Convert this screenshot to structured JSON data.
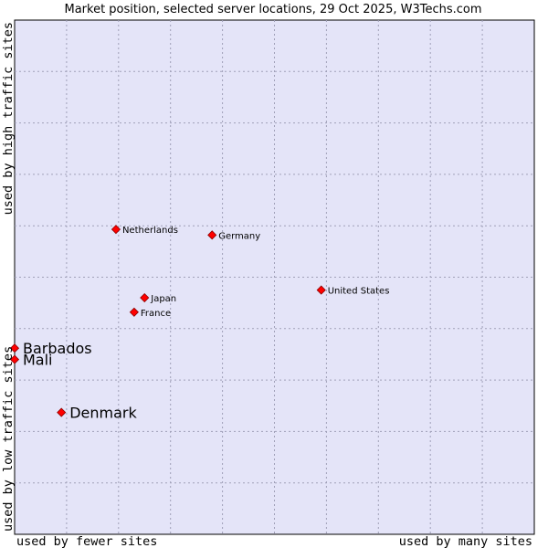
{
  "chart_data": {
    "type": "scatter",
    "title": "Market position, selected server locations, 29 Oct 2025, W3Techs.com",
    "xlabel_left": "used by fewer sites",
    "xlabel_right": "used by many sites",
    "ylabel_low": "used by low traffic sites",
    "ylabel_high": "used by high traffic sites",
    "xlim": [
      0,
      10
    ],
    "ylim": [
      0,
      10
    ],
    "grid": true,
    "point_color": "#ff0000",
    "plot_background": "#e4e4f8",
    "points": [
      {
        "name": "Netherlands",
        "x": 1.95,
        "y": 5.93,
        "size": "small"
      },
      {
        "name": "Germany",
        "x": 3.8,
        "y": 5.82,
        "size": "small"
      },
      {
        "name": "United States",
        "x": 5.9,
        "y": 4.75,
        "size": "small"
      },
      {
        "name": "Japan",
        "x": 2.5,
        "y": 4.6,
        "size": "small"
      },
      {
        "name": "France",
        "x": 2.3,
        "y": 4.32,
        "size": "small"
      },
      {
        "name": "Barbados",
        "x": 0.0,
        "y": 3.62,
        "size": "large"
      },
      {
        "name": "Mali",
        "x": 0.0,
        "y": 3.4,
        "size": "large"
      },
      {
        "name": "Denmark",
        "x": 0.9,
        "y": 2.37,
        "size": "large"
      }
    ]
  }
}
